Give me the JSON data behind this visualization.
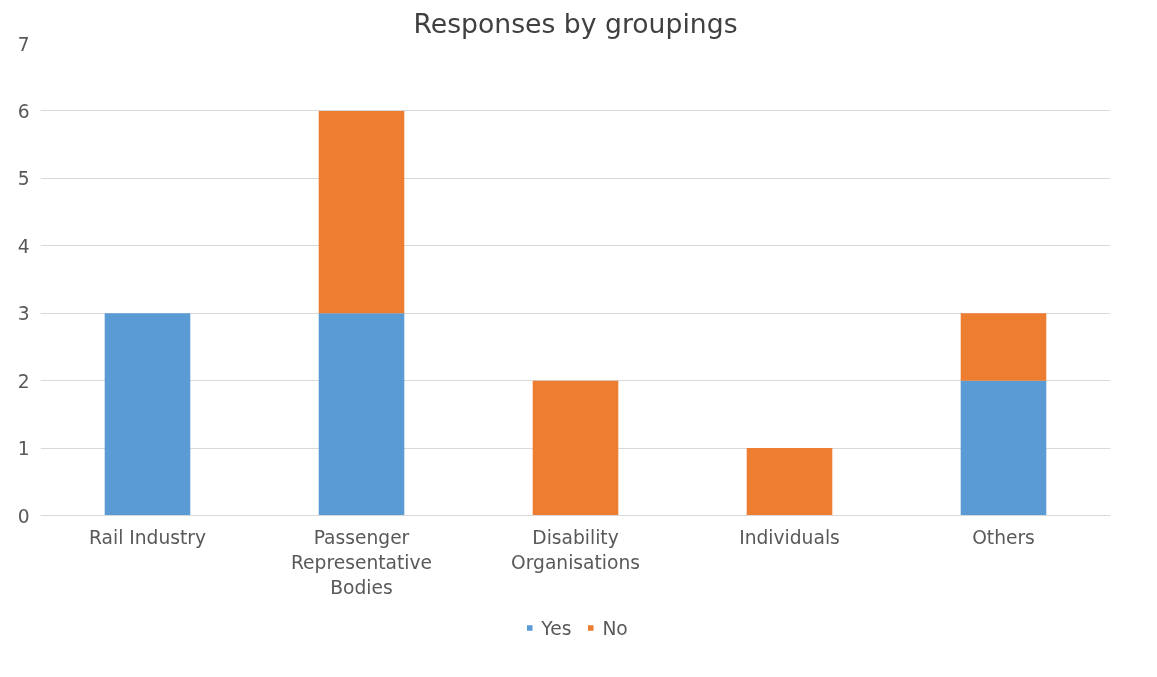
{
  "chart_data": {
    "type": "bar",
    "title": "Responses by groupings",
    "stacked": true,
    "categories": [
      "Rail Industry",
      "Passenger Representative Bodies",
      "Disability Organisations",
      "Individuals",
      "Others"
    ],
    "series": [
      {
        "name": "Yes",
        "color": "#5b9bd5",
        "values": [
          3,
          3,
          0,
          0,
          2
        ]
      },
      {
        "name": "No",
        "color": "#ed7d31",
        "values": [
          0,
          3,
          2,
          1,
          1
        ]
      }
    ],
    "ylim": [
      0,
      7
    ],
    "yticks": [
      0,
      1,
      2,
      3,
      4,
      5,
      6,
      7
    ],
    "grid": "y",
    "legend": "bottom"
  }
}
